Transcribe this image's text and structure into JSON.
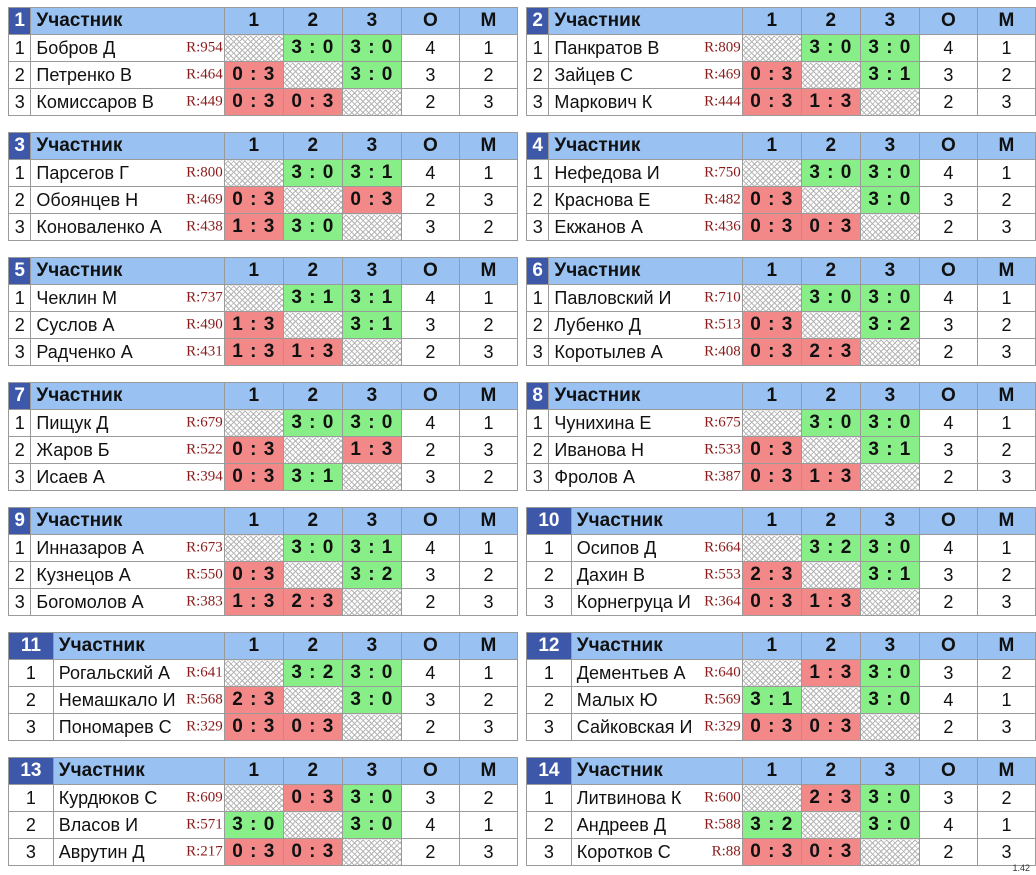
{
  "headers": {
    "participant": "Участник",
    "c1": "1",
    "c2": "2",
    "c3": "3",
    "o": "О",
    "m": "М"
  },
  "version": "1.42",
  "colors": {
    "win": "#88ee88",
    "loss": "#f28888",
    "header": "#99c2f2",
    "group_number": "#3d58a8",
    "rating": "#8b1a1a"
  },
  "groups": [
    {
      "number": "1",
      "rows": [
        {
          "idx": "1",
          "name": "Бобров Д",
          "rating": "R:954",
          "r": [
            "",
            "3 : 0",
            "3 : 0"
          ],
          "o": "4",
          "m": "1"
        },
        {
          "idx": "2",
          "name": "Петренко В",
          "rating": "R:464",
          "r": [
            "0 : 3",
            "",
            "3 : 0"
          ],
          "o": "3",
          "m": "2"
        },
        {
          "idx": "3",
          "name": "Комиссаров В",
          "rating": "R:449",
          "r": [
            "0 : 3",
            "0 : 3",
            ""
          ],
          "o": "2",
          "m": "3"
        }
      ]
    },
    {
      "number": "2",
      "rows": [
        {
          "idx": "1",
          "name": "Панкратов В",
          "rating": "R:809",
          "r": [
            "",
            "3 : 0",
            "3 : 0"
          ],
          "o": "4",
          "m": "1"
        },
        {
          "idx": "2",
          "name": "Зайцев С",
          "rating": "R:469",
          "r": [
            "0 : 3",
            "",
            "3 : 1"
          ],
          "o": "3",
          "m": "2"
        },
        {
          "idx": "3",
          "name": "Маркович К",
          "rating": "R:444",
          "r": [
            "0 : 3",
            "1 : 3",
            ""
          ],
          "o": "2",
          "m": "3"
        }
      ]
    },
    {
      "number": "3",
      "rows": [
        {
          "idx": "1",
          "name": "Парсегов Г",
          "rating": "R:800",
          "r": [
            "",
            "3 : 0",
            "3 : 1"
          ],
          "o": "4",
          "m": "1"
        },
        {
          "idx": "2",
          "name": "Обоянцев Н",
          "rating": "R:469",
          "r": [
            "0 : 3",
            "",
            "0 : 3"
          ],
          "o": "2",
          "m": "3"
        },
        {
          "idx": "3",
          "name": "Коноваленко А",
          "rating": "R:438",
          "r": [
            "1 : 3",
            "3 : 0",
            ""
          ],
          "o": "3",
          "m": "2"
        }
      ]
    },
    {
      "number": "4",
      "rows": [
        {
          "idx": "1",
          "name": "Нефедова И",
          "rating": "R:750",
          "r": [
            "",
            "3 : 0",
            "3 : 0"
          ],
          "o": "4",
          "m": "1"
        },
        {
          "idx": "2",
          "name": "Краснова Е",
          "rating": "R:482",
          "r": [
            "0 : 3",
            "",
            "3 : 0"
          ],
          "o": "3",
          "m": "2"
        },
        {
          "idx": "3",
          "name": "Екжанов А",
          "rating": "R:436",
          "r": [
            "0 : 3",
            "0 : 3",
            ""
          ],
          "o": "2",
          "m": "3"
        }
      ]
    },
    {
      "number": "5",
      "rows": [
        {
          "idx": "1",
          "name": "Чеклин М",
          "rating": "R:737",
          "r": [
            "",
            "3 : 1",
            "3 : 1"
          ],
          "o": "4",
          "m": "1"
        },
        {
          "idx": "2",
          "name": "Суслов А",
          "rating": "R:490",
          "r": [
            "1 : 3",
            "",
            "3 : 1"
          ],
          "o": "3",
          "m": "2"
        },
        {
          "idx": "3",
          "name": "Радченко А",
          "rating": "R:431",
          "r": [
            "1 : 3",
            "1 : 3",
            ""
          ],
          "o": "2",
          "m": "3"
        }
      ]
    },
    {
      "number": "6",
      "rows": [
        {
          "idx": "1",
          "name": "Павловский И",
          "rating": "R:710",
          "r": [
            "",
            "3 : 0",
            "3 : 0"
          ],
          "o": "4",
          "m": "1"
        },
        {
          "idx": "2",
          "name": "Лубенко Д",
          "rating": "R:513",
          "r": [
            "0 : 3",
            "",
            "3 : 2"
          ],
          "o": "3",
          "m": "2"
        },
        {
          "idx": "3",
          "name": "Коротылев А",
          "rating": "R:408",
          "r": [
            "0 : 3",
            "2 : 3",
            ""
          ],
          "o": "2",
          "m": "3"
        }
      ]
    },
    {
      "number": "7",
      "rows": [
        {
          "idx": "1",
          "name": "Пищук Д",
          "rating": "R:679",
          "r": [
            "",
            "3 : 0",
            "3 : 0"
          ],
          "o": "4",
          "m": "1"
        },
        {
          "idx": "2",
          "name": "Жаров Б",
          "rating": "R:522",
          "r": [
            "0 : 3",
            "",
            "1 : 3"
          ],
          "o": "2",
          "m": "3"
        },
        {
          "idx": "3",
          "name": "Исаев А",
          "rating": "R:394",
          "r": [
            "0 : 3",
            "3 : 1",
            ""
          ],
          "o": "3",
          "m": "2"
        }
      ]
    },
    {
      "number": "8",
      "rows": [
        {
          "idx": "1",
          "name": "Чунихина Е",
          "rating": "R:675",
          "r": [
            "",
            "3 : 0",
            "3 : 0"
          ],
          "o": "4",
          "m": "1"
        },
        {
          "idx": "2",
          "name": "Иванова Н",
          "rating": "R:533",
          "r": [
            "0 : 3",
            "",
            "3 : 1"
          ],
          "o": "3",
          "m": "2"
        },
        {
          "idx": "3",
          "name": "Фролов А",
          "rating": "R:387",
          "r": [
            "0 : 3",
            "1 : 3",
            ""
          ],
          "o": "2",
          "m": "3"
        }
      ]
    },
    {
      "number": "9",
      "rows": [
        {
          "idx": "1",
          "name": "Инназаров А",
          "rating": "R:673",
          "r": [
            "",
            "3 : 0",
            "3 : 1"
          ],
          "o": "4",
          "m": "1"
        },
        {
          "idx": "2",
          "name": "Кузнецов А",
          "rating": "R:550",
          "r": [
            "0 : 3",
            "",
            "3 : 2"
          ],
          "o": "3",
          "m": "2"
        },
        {
          "idx": "3",
          "name": "Богомолов А",
          "rating": "R:383",
          "r": [
            "1 : 3",
            "2 : 3",
            ""
          ],
          "o": "2",
          "m": "3"
        }
      ]
    },
    {
      "number": "10",
      "rows": [
        {
          "idx": "1",
          "name": "Осипов Д",
          "rating": "R:664",
          "r": [
            "",
            "3 : 2",
            "3 : 0"
          ],
          "o": "4",
          "m": "1"
        },
        {
          "idx": "2",
          "name": "Дахин В",
          "rating": "R:553",
          "r": [
            "2 : 3",
            "",
            "3 : 1"
          ],
          "o": "3",
          "m": "2"
        },
        {
          "idx": "3",
          "name": "Корнегруца И",
          "rating": "R:364",
          "r": [
            "0 : 3",
            "1 : 3",
            ""
          ],
          "o": "2",
          "m": "3"
        }
      ]
    },
    {
      "number": "11",
      "rows": [
        {
          "idx": "1",
          "name": "Рогальский А",
          "rating": "R:641",
          "r": [
            "",
            "3 : 2",
            "3 : 0"
          ],
          "o": "4",
          "m": "1"
        },
        {
          "idx": "2",
          "name": "Немашкало И",
          "rating": "R:568",
          "r": [
            "2 : 3",
            "",
            "3 : 0"
          ],
          "o": "3",
          "m": "2"
        },
        {
          "idx": "3",
          "name": "Пономарев С",
          "rating": "R:329",
          "r": [
            "0 : 3",
            "0 : 3",
            ""
          ],
          "o": "2",
          "m": "3"
        }
      ]
    },
    {
      "number": "12",
      "rows": [
        {
          "idx": "1",
          "name": "Дементьев А",
          "rating": "R:640",
          "r": [
            "",
            "1 : 3",
            "3 : 0"
          ],
          "o": "3",
          "m": "2"
        },
        {
          "idx": "2",
          "name": "Малых Ю",
          "rating": "R:569",
          "r": [
            "3 : 1",
            "",
            "3 : 0"
          ],
          "o": "4",
          "m": "1"
        },
        {
          "idx": "3",
          "name": "Сайковская И",
          "rating": "R:329",
          "r": [
            "0 : 3",
            "0 : 3",
            ""
          ],
          "o": "2",
          "m": "3"
        }
      ]
    },
    {
      "number": "13",
      "rows": [
        {
          "idx": "1",
          "name": "Курдюков С",
          "rating": "R:609",
          "r": [
            "",
            "0 : 3",
            "3 : 0"
          ],
          "o": "3",
          "m": "2"
        },
        {
          "idx": "2",
          "name": "Власов И",
          "rating": "R:571",
          "r": [
            "3 : 0",
            "",
            "3 : 0"
          ],
          "o": "4",
          "m": "1"
        },
        {
          "idx": "3",
          "name": "Аврутин Д",
          "rating": "R:217",
          "r": [
            "0 : 3",
            "0 : 3",
            ""
          ],
          "o": "2",
          "m": "3"
        }
      ]
    },
    {
      "number": "14",
      "rows": [
        {
          "idx": "1",
          "name": "Литвинова К",
          "rating": "R:600",
          "r": [
            "",
            "2 : 3",
            "3 : 0"
          ],
          "o": "3",
          "m": "2"
        },
        {
          "idx": "2",
          "name": "Андреев Д",
          "rating": "R:588",
          "r": [
            "3 : 2",
            "",
            "3 : 0"
          ],
          "o": "4",
          "m": "1"
        },
        {
          "idx": "3",
          "name": "Коротков С",
          "rating": "R:88",
          "r": [
            "0 : 3",
            "0 : 3",
            ""
          ],
          "o": "2",
          "m": "3"
        }
      ]
    }
  ]
}
